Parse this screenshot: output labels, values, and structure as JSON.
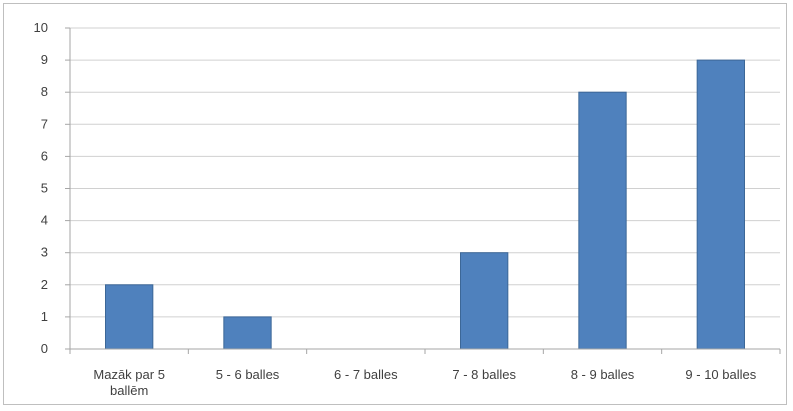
{
  "chart_data": {
    "type": "bar",
    "title": "",
    "xlabel": "",
    "ylabel": "",
    "categories": [
      [
        "Mazāk par 5",
        "ballēm"
      ],
      [
        "5 - 6 balles"
      ],
      [
        "6 - 7 balles"
      ],
      [
        "7 - 8 balles"
      ],
      [
        "8 - 9 balles"
      ],
      [
        "9 - 10 balles"
      ]
    ],
    "values": [
      2,
      1,
      0,
      3,
      8,
      9
    ],
    "ylim": [
      0,
      10
    ],
    "yticks": [
      0,
      1,
      2,
      3,
      4,
      5,
      6,
      7,
      8,
      9,
      10
    ],
    "grid": true,
    "legend": "none",
    "colors": {
      "bar": "#4f81bd",
      "bar_edge": "#3c6797",
      "grid": "#d0d0d0",
      "axis": "#a6a6a6"
    }
  }
}
